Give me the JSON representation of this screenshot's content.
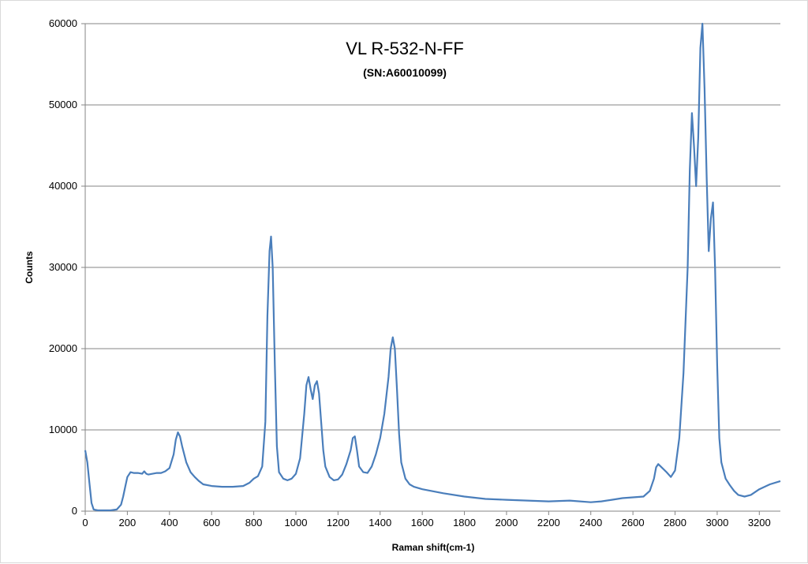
{
  "chart_data": {
    "type": "line",
    "title": "VL R-532-N-FF",
    "subtitle": "(SN:A60010099)",
    "xlabel": "Raman shift(cm-1)",
    "ylabel": "Counts",
    "xlim": [
      0,
      3300
    ],
    "ylim": [
      0,
      60000
    ],
    "xticks": [
      0,
      200,
      400,
      600,
      800,
      1000,
      1200,
      1400,
      1600,
      1800,
      2000,
      2200,
      2400,
      2600,
      2800,
      3000,
      3200
    ],
    "yticks": [
      0,
      10000,
      20000,
      30000,
      40000,
      50000,
      60000
    ],
    "grid": "horizontal",
    "line_color": "#4a7ebb",
    "series": [
      {
        "x": [
          0,
          10,
          20,
          30,
          40,
          60,
          80,
          100,
          120,
          150,
          170,
          180,
          190,
          200,
          215,
          230,
          250,
          270,
          280,
          290,
          300,
          320,
          340,
          360,
          380,
          400,
          420,
          430,
          440,
          450,
          460,
          480,
          500,
          520,
          540,
          560,
          600,
          650,
          700,
          750,
          780,
          800,
          820,
          840,
          855,
          865,
          875,
          882,
          890,
          900,
          910,
          920,
          940,
          960,
          980,
          1000,
          1020,
          1040,
          1050,
          1060,
          1070,
          1080,
          1090,
          1100,
          1110,
          1120,
          1130,
          1140,
          1160,
          1180,
          1200,
          1220,
          1240,
          1260,
          1270,
          1280,
          1290,
          1300,
          1320,
          1340,
          1360,
          1380,
          1400,
          1420,
          1440,
          1450,
          1460,
          1470,
          1480,
          1490,
          1500,
          1520,
          1540,
          1560,
          1600,
          1700,
          1800,
          1900,
          2000,
          2100,
          2200,
          2300,
          2400,
          2450,
          2500,
          2550,
          2600,
          2650,
          2680,
          2700,
          2710,
          2720,
          2740,
          2760,
          2780,
          2800,
          2820,
          2840,
          2860,
          2870,
          2880,
          2890,
          2900,
          2910,
          2920,
          2930,
          2940,
          2950,
          2960,
          2970,
          2980,
          2990,
          3000,
          3010,
          3020,
          3030,
          3040,
          3060,
          3080,
          3100,
          3130,
          3160,
          3200,
          3250,
          3300
        ],
        "y": [
          7500,
          6000,
          3500,
          1000,
          200,
          100,
          100,
          100,
          100,
          200,
          800,
          1800,
          3000,
          4200,
          4800,
          4700,
          4700,
          4600,
          4900,
          4600,
          4500,
          4600,
          4700,
          4700,
          4900,
          5300,
          7000,
          8800,
          9700,
          9200,
          8000,
          6000,
          4800,
          4200,
          3700,
          3300,
          3100,
          3000,
          3000,
          3100,
          3500,
          4000,
          4300,
          5500,
          11000,
          24000,
          32000,
          33800,
          30000,
          18000,
          8000,
          4800,
          4000,
          3800,
          4000,
          4600,
          6500,
          12000,
          15500,
          16500,
          15000,
          13800,
          15500,
          16000,
          14500,
          11000,
          7500,
          5500,
          4200,
          3800,
          3900,
          4500,
          5800,
          7500,
          9000,
          9200,
          7500,
          5500,
          4800,
          4700,
          5500,
          7000,
          9000,
          12000,
          16500,
          20000,
          21400,
          20000,
          15000,
          9500,
          6000,
          4000,
          3300,
          3000,
          2700,
          2200,
          1800,
          1500,
          1400,
          1300,
          1200,
          1300,
          1100,
          1200,
          1400,
          1600,
          1700,
          1800,
          2500,
          4000,
          5400,
          5800,
          5300,
          4800,
          4200,
          5000,
          9000,
          17000,
          30000,
          42000,
          49000,
          45000,
          40000,
          46000,
          57000,
          60000,
          52000,
          41000,
          32000,
          36000,
          38000,
          30000,
          18000,
          9000,
          6000,
          5000,
          4000,
          3200,
          2500,
          2000,
          1800,
          2000,
          2700,
          3300,
          3700
        ]
      }
    ]
  }
}
